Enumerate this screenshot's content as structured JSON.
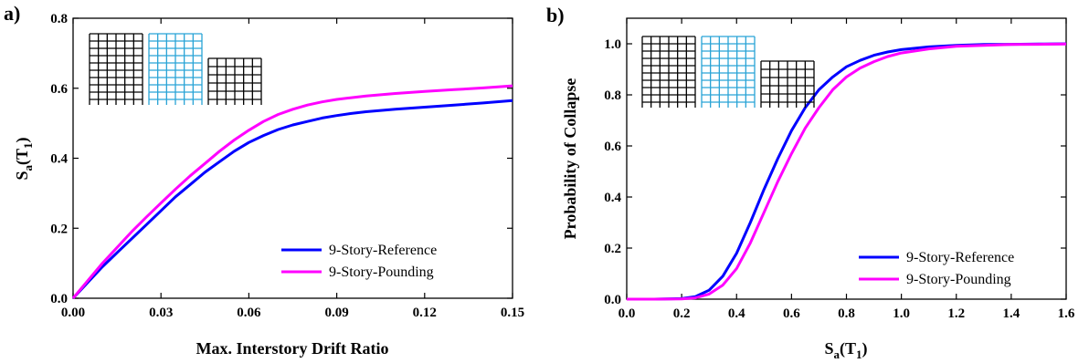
{
  "chart_data": [
    {
      "type": "line",
      "panel_label": "a)",
      "xlabel": "Max. Interstory Drift Ratio",
      "ylabel": "S",
      "ylabel_sub": "a",
      "ylabel_paren_open": "(T",
      "ylabel_paren_sub": "1",
      "ylabel_paren_close": ")",
      "xlim": [
        0,
        0.15
      ],
      "ylim": [
        0,
        0.8
      ],
      "xticks": [
        "0.00",
        "0.03",
        "0.06",
        "0.09",
        "0.12",
        "0.15"
      ],
      "yticks": [
        "0.0",
        "0.2",
        "0.4",
        "0.6",
        "0.8"
      ],
      "legend_position": "bottom-right",
      "grid": false,
      "series": [
        {
          "name": "9-Story-Reference",
          "color": "#0000ff",
          "x": [
            0,
            0.005,
            0.01,
            0.015,
            0.02,
            0.025,
            0.03,
            0.035,
            0.04,
            0.045,
            0.05,
            0.055,
            0.06,
            0.065,
            0.07,
            0.075,
            0.08,
            0.085,
            0.09,
            0.095,
            0.1,
            0.11,
            0.12,
            0.13,
            0.14,
            0.15
          ],
          "y": [
            0,
            0.045,
            0.09,
            0.13,
            0.17,
            0.21,
            0.25,
            0.29,
            0.325,
            0.36,
            0.39,
            0.42,
            0.445,
            0.465,
            0.482,
            0.495,
            0.505,
            0.515,
            0.522,
            0.528,
            0.533,
            0.54,
            0.546,
            0.552,
            0.558,
            0.565
          ]
        },
        {
          "name": "9-Story-Pounding",
          "color": "#ff00ff",
          "x": [
            0,
            0.005,
            0.01,
            0.015,
            0.02,
            0.025,
            0.03,
            0.035,
            0.04,
            0.045,
            0.05,
            0.055,
            0.06,
            0.065,
            0.07,
            0.075,
            0.08,
            0.085,
            0.09,
            0.095,
            0.1,
            0.11,
            0.12,
            0.13,
            0.14,
            0.15
          ],
          "y": [
            0,
            0.05,
            0.1,
            0.145,
            0.19,
            0.232,
            0.272,
            0.312,
            0.35,
            0.385,
            0.42,
            0.452,
            0.48,
            0.505,
            0.525,
            0.54,
            0.552,
            0.561,
            0.568,
            0.573,
            0.578,
            0.585,
            0.591,
            0.596,
            0.601,
            0.607
          ]
        }
      ]
    },
    {
      "type": "line",
      "panel_label": "b)",
      "xlabel": "S",
      "xlabel_sub": "a",
      "xlabel_paren_open": "(T",
      "xlabel_paren_sub": "1",
      "xlabel_paren_close": ")",
      "ylabel": "Probability of Collapse",
      "xlim": [
        0,
        1.6
      ],
      "ylim": [
        0,
        1.1
      ],
      "xticks": [
        "0.0",
        "0.2",
        "0.4",
        "0.6",
        "0.8",
        "1.0",
        "1.2",
        "1.4",
        "1.6"
      ],
      "yticks": [
        "0.0",
        "0.2",
        "0.4",
        "0.6",
        "0.8",
        "1.0"
      ],
      "legend_position": "bottom-right",
      "grid": false,
      "series": [
        {
          "name": "9-Story-Reference",
          "color": "#0000ff",
          "x": [
            0,
            0.1,
            0.2,
            0.25,
            0.3,
            0.35,
            0.4,
            0.45,
            0.5,
            0.55,
            0.6,
            0.65,
            0.7,
            0.75,
            0.8,
            0.85,
            0.9,
            0.95,
            1.0,
            1.1,
            1.2,
            1.3,
            1.4,
            1.5,
            1.6
          ],
          "y": [
            0,
            0,
            0.002,
            0.01,
            0.035,
            0.09,
            0.18,
            0.3,
            0.43,
            0.55,
            0.66,
            0.75,
            0.82,
            0.87,
            0.91,
            0.935,
            0.955,
            0.968,
            0.977,
            0.988,
            0.994,
            0.997,
            0.998,
            0.999,
            1.0
          ]
        },
        {
          "name": "9-Story-Pounding",
          "color": "#ff00ff",
          "x": [
            0,
            0.1,
            0.2,
            0.25,
            0.3,
            0.35,
            0.4,
            0.45,
            0.5,
            0.55,
            0.6,
            0.65,
            0.7,
            0.75,
            0.8,
            0.85,
            0.9,
            0.95,
            1.0,
            1.1,
            1.2,
            1.3,
            1.4,
            1.5,
            1.6
          ],
          "y": [
            0,
            0,
            0.001,
            0.005,
            0.02,
            0.055,
            0.12,
            0.22,
            0.34,
            0.46,
            0.57,
            0.67,
            0.75,
            0.82,
            0.87,
            0.905,
            0.93,
            0.95,
            0.964,
            0.98,
            0.99,
            0.994,
            0.997,
            0.998,
            0.999
          ]
        }
      ]
    }
  ],
  "icons": {
    "building_frame_tall_color": "#000000",
    "building_frame_highlight_color": "#29a3d6",
    "building_frame_short_color": "#000000"
  }
}
